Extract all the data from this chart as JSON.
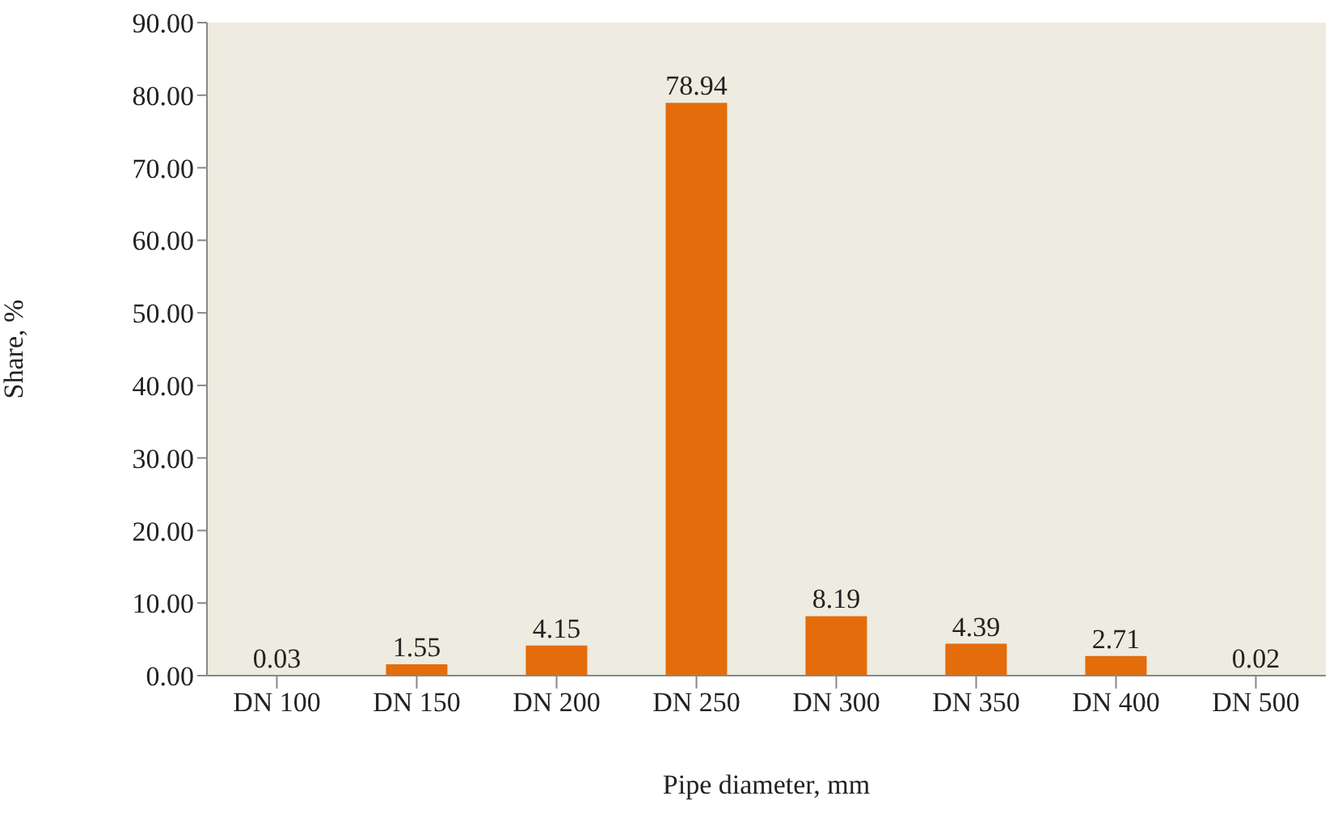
{
  "chart_data": {
    "type": "bar",
    "xlabel": "Pipe diameter, mm",
    "ylabel": "Share, %",
    "categories": [
      "DN 100",
      "DN 150",
      "DN 200",
      "DN 250",
      "DN 300",
      "DN 350",
      "DN 400",
      "DN 500"
    ],
    "values": [
      0.03,
      1.55,
      4.15,
      78.94,
      8.19,
      4.39,
      2.71,
      0.02
    ],
    "color": "#e46c0a",
    "ylim": [
      0,
      90
    ],
    "yticks": [
      {
        "value": 0,
        "label": "0.00"
      },
      {
        "value": 10,
        "label": "10.00"
      },
      {
        "value": 20,
        "label": "20.00"
      },
      {
        "value": 30,
        "label": "30.00"
      },
      {
        "value": 40,
        "label": "40.00"
      },
      {
        "value": 50,
        "label": "50.00"
      },
      {
        "value": 60,
        "label": "60.00"
      },
      {
        "value": 70,
        "label": "70.00"
      },
      {
        "value": 80,
        "label": "80.00"
      },
      {
        "value": 90,
        "label": "90.00"
      }
    ],
    "data_labels": true
  }
}
